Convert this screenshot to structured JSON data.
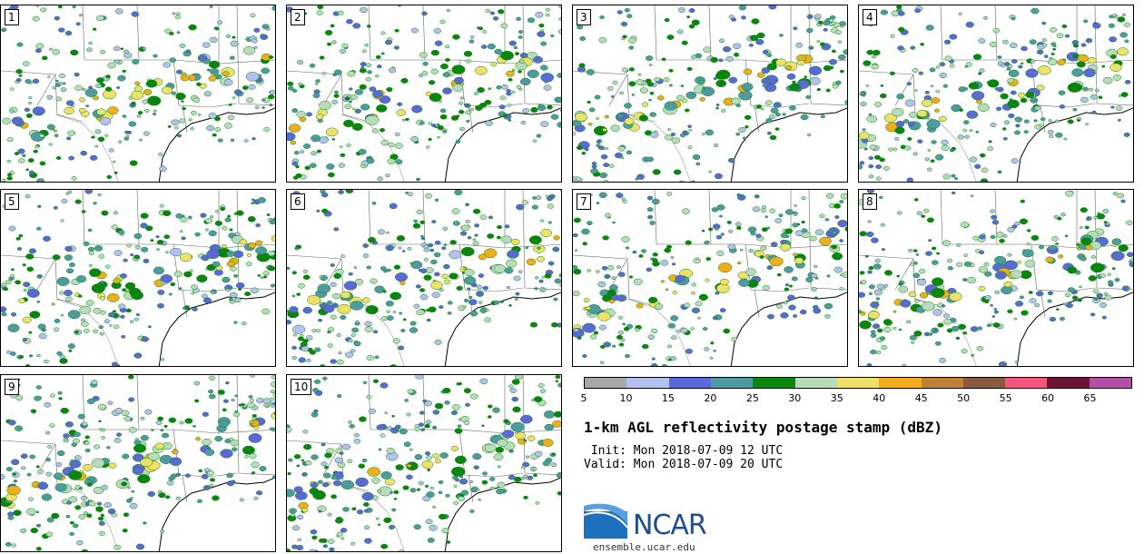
{
  "panels": [
    "1",
    "2",
    "3",
    "4",
    "5",
    "6",
    "7",
    "8",
    "9",
    "10"
  ],
  "colorbar": {
    "ticks": [
      "5",
      "10",
      "15",
      "20",
      "25",
      "30",
      "35",
      "40",
      "45",
      "50",
      "55",
      "60",
      "65"
    ],
    "colors": [
      "#a8a8a8",
      "#b4c0ee",
      "#5b68d8",
      "#4f9aa1",
      "#0a850d",
      "#b8dcbb",
      "#efe06a",
      "#f0ae1c",
      "#bd8236",
      "#8a5a3e",
      "#f2567d",
      "#6a1536",
      "#b150a5"
    ]
  },
  "title": "1-km AGL reflectivity postage stamp (dBZ)",
  "init": " Init: Mon 2018-07-09 12 UTC",
  "valid": "Valid: Mon 2018-07-09 20 UTC",
  "logo_text": "NCAR",
  "website": "ensemble.ucar.edu"
}
